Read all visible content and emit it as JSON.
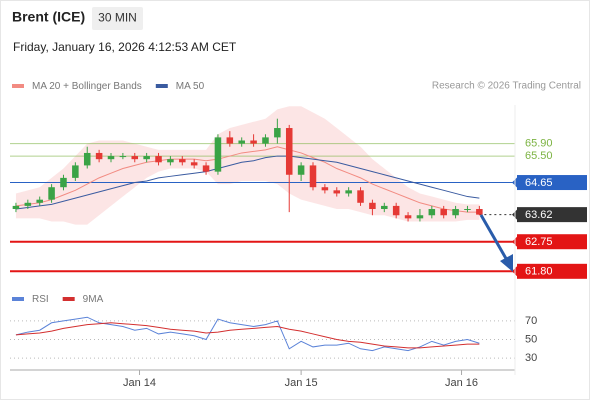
{
  "header": {
    "title": "Brent (ICE)",
    "interval": "30 MIN",
    "date": "Friday, January 16, 2026 4:12:53 AM CET",
    "credit": "Research © 2026 Trading Central"
  },
  "chart_data": [
    {
      "type": "candlestick",
      "legend": [
        {
          "name": "MA 20 + Bollinger Bands",
          "color": "#f28b82"
        },
        {
          "name": "MA 50",
          "color": "#3a5ba0"
        }
      ],
      "xlim": [
        -0.5,
        42
      ],
      "ylim": [
        61.2,
        67.3
      ],
      "xticks": [
        {
          "value": 10.4,
          "label": "Jan 14"
        },
        {
          "value": 24,
          "label": "Jan 15"
        },
        {
          "value": 37.5,
          "label": "Jan 16"
        }
      ],
      "up_color": "#3aa346",
      "down_color": "#e53935",
      "candles": [
        [
          63.8,
          64.0,
          63.7,
          63.9
        ],
        [
          63.9,
          64.1,
          63.8,
          64.0
        ],
        [
          64.0,
          64.2,
          63.9,
          64.1
        ],
        [
          64.1,
          64.6,
          64.0,
          64.5
        ],
        [
          64.5,
          64.9,
          64.4,
          64.8
        ],
        [
          64.8,
          65.3,
          64.7,
          65.2
        ],
        [
          65.2,
          65.8,
          65.1,
          65.6
        ],
        [
          65.6,
          65.7,
          65.3,
          65.4
        ],
        [
          65.4,
          65.6,
          65.3,
          65.5
        ],
        [
          65.5,
          65.6,
          65.4,
          65.5
        ],
        [
          65.5,
          65.6,
          65.3,
          65.4
        ],
        [
          65.4,
          65.6,
          65.3,
          65.5
        ],
        [
          65.5,
          65.6,
          65.2,
          65.3
        ],
        [
          65.3,
          65.5,
          65.2,
          65.4
        ],
        [
          65.4,
          65.5,
          65.2,
          65.3
        ],
        [
          65.3,
          65.4,
          65.1,
          65.2
        ],
        [
          65.2,
          65.3,
          64.9,
          65.0
        ],
        [
          65.0,
          66.2,
          64.9,
          66.1
        ],
        [
          66.1,
          66.3,
          65.8,
          65.9
        ],
        [
          65.9,
          66.1,
          65.8,
          66.0
        ],
        [
          66.0,
          66.2,
          65.8,
          65.9
        ],
        [
          65.9,
          66.2,
          65.8,
          66.1
        ],
        [
          66.1,
          66.7,
          65.9,
          66.4
        ],
        [
          66.4,
          66.5,
          63.7,
          64.9
        ],
        [
          64.9,
          65.3,
          64.7,
          65.2
        ],
        [
          65.2,
          65.3,
          64.4,
          64.5
        ],
        [
          64.5,
          64.6,
          64.3,
          64.4
        ],
        [
          64.4,
          64.5,
          64.2,
          64.3
        ],
        [
          64.3,
          64.5,
          64.2,
          64.4
        ],
        [
          64.4,
          64.5,
          63.9,
          64.0
        ],
        [
          64.0,
          64.1,
          63.6,
          63.8
        ],
        [
          63.8,
          64.0,
          63.7,
          63.9
        ],
        [
          63.9,
          64.0,
          63.5,
          63.6
        ],
        [
          63.6,
          63.7,
          63.4,
          63.5
        ],
        [
          63.5,
          63.8,
          63.4,
          63.6
        ],
        [
          63.6,
          63.9,
          63.5,
          63.8
        ],
        [
          63.8,
          63.9,
          63.5,
          63.6
        ],
        [
          63.6,
          63.9,
          63.5,
          63.8
        ],
        [
          63.8,
          63.9,
          63.7,
          63.8
        ],
        [
          63.8,
          63.9,
          63.6,
          63.62
        ]
      ],
      "ma20": [
        63.9,
        63.95,
        64.0,
        64.1,
        64.25,
        64.4,
        64.6,
        64.8,
        64.95,
        65.1,
        65.2,
        65.3,
        65.35,
        65.4,
        65.4,
        65.4,
        65.35,
        65.4,
        65.5,
        65.6,
        65.65,
        65.7,
        65.8,
        65.7,
        65.6,
        65.45,
        65.3,
        65.1,
        64.95,
        64.8,
        64.6,
        64.45,
        64.3,
        64.15,
        64.0,
        63.9,
        63.8,
        63.75,
        63.7,
        63.7
      ],
      "bb_upper": [
        64.3,
        64.4,
        64.5,
        64.8,
        65.1,
        65.5,
        65.9,
        66.0,
        66.0,
        66.0,
        65.9,
        65.8,
        65.7,
        65.7,
        65.7,
        65.7,
        65.7,
        66.2,
        66.4,
        66.5,
        66.6,
        66.7,
        67.0,
        67.1,
        67.1,
        66.9,
        66.7,
        66.4,
        66.1,
        65.8,
        65.4,
        65.1,
        64.8,
        64.5,
        64.3,
        64.2,
        64.1,
        64.0,
        63.95,
        63.95
      ],
      "bb_lower": [
        63.5,
        63.5,
        63.5,
        63.4,
        63.4,
        63.3,
        63.3,
        63.6,
        63.9,
        64.2,
        64.5,
        64.8,
        65.0,
        65.1,
        65.1,
        65.1,
        65.0,
        64.6,
        64.6,
        64.7,
        64.7,
        64.7,
        64.6,
        64.3,
        64.1,
        64.0,
        63.9,
        63.8,
        63.8,
        63.7,
        63.6,
        63.6,
        63.5,
        63.4,
        63.4,
        63.4,
        63.4,
        63.4,
        63.45,
        63.45
      ],
      "ma50": [
        63.8,
        63.85,
        63.9,
        63.95,
        64.05,
        64.15,
        64.25,
        64.35,
        64.45,
        64.55,
        64.65,
        64.7,
        64.8,
        64.85,
        64.9,
        64.95,
        65.0,
        65.1,
        65.2,
        65.3,
        65.35,
        65.45,
        65.5,
        65.5,
        65.45,
        65.4,
        65.35,
        65.3,
        65.2,
        65.1,
        65.0,
        64.9,
        64.8,
        64.7,
        64.6,
        64.5,
        64.4,
        64.3,
        64.2,
        64.15
      ],
      "levels": [
        {
          "value": 65.9,
          "label": "65.90",
          "color": "#7cb342",
          "box": false,
          "dotted": false
        },
        {
          "value": 65.5,
          "label": "65.50",
          "color": "#7cb342",
          "box": false,
          "dotted": false
        },
        {
          "value": 64.65,
          "label": "64.65",
          "color": "#2962c4",
          "box": true,
          "dotted": false
        },
        {
          "value": 63.62,
          "label": "63.62",
          "color": "#333333",
          "box": true,
          "dotted": true
        },
        {
          "value": 62.75,
          "label": "62.75",
          "color": "#e31515",
          "box": true,
          "dotted": false
        },
        {
          "value": 61.8,
          "label": "61.80",
          "color": "#e31515",
          "box": true,
          "dotted": false
        }
      ]
    },
    {
      "type": "line",
      "series": [
        {
          "name": "RSI",
          "color": "#5b83d8",
          "values": [
            55,
            58,
            60,
            68,
            70,
            72,
            74,
            68,
            66,
            64,
            60,
            62,
            56,
            58,
            56,
            54,
            50,
            72,
            68,
            66,
            64,
            66,
            70,
            40,
            48,
            42,
            44,
            44,
            46,
            40,
            38,
            42,
            40,
            38,
            42,
            48,
            44,
            48,
            50,
            46
          ]
        },
        {
          "name": "9MA",
          "color": "#d32f2f",
          "values": [
            55,
            56,
            57,
            59,
            62,
            64,
            66,
            67,
            68,
            67,
            66,
            65,
            63,
            61,
            60,
            59,
            57,
            58,
            60,
            61,
            62,
            63,
            64,
            61,
            59,
            56,
            53,
            50,
            48,
            47,
            45,
            43,
            42,
            41,
            41,
            42,
            43,
            44,
            45,
            45
          ]
        }
      ],
      "ylim": [
        15,
        85
      ],
      "yticks": [
        70,
        50,
        30
      ],
      "grid": true
    }
  ]
}
